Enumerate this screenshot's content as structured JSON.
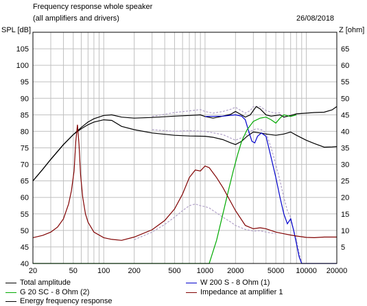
{
  "header": {
    "title": "Frequency response whole speaker",
    "subtitle": "(all amplifiers and drivers)",
    "date": "26/08/2018",
    "left_unit": "SPL [dB]",
    "right_unit": "Z [ohm]"
  },
  "colors": {
    "total": "#000000",
    "woofer": "#0000cc",
    "tweeter": "#00aa00",
    "impedance": "#800000",
    "dotted": "#b0a0c8",
    "grid": "#c0c0c0"
  },
  "chart_data": {
    "type": "line",
    "x_scale": "log",
    "xlim": [
      20,
      20000
    ],
    "ylim_left": [
      40,
      110
    ],
    "ylim_right": [
      0,
      70
    ],
    "grid": true,
    "x_tick_labels": [
      "20",
      "50",
      "100",
      "200",
      "500",
      "1000",
      "2000",
      "5000",
      "10000",
      "20000"
    ],
    "x_tick_values": [
      20,
      50,
      100,
      200,
      500,
      1000,
      2000,
      5000,
      10000,
      20000
    ],
    "y_left_ticks": [
      40,
      45,
      50,
      55,
      60,
      65,
      70,
      75,
      80,
      85,
      90,
      95,
      100,
      105
    ],
    "y_right_ticks": [
      5,
      10,
      15,
      20,
      25,
      30,
      35,
      40,
      45,
      50,
      55,
      60,
      65
    ],
    "series": [
      {
        "name": "Total amplitude",
        "color": "#000000",
        "points": [
          [
            20,
            65
          ],
          [
            25,
            68.5
          ],
          [
            30,
            71.5
          ],
          [
            40,
            76
          ],
          [
            50,
            79
          ],
          [
            60,
            81.2
          ],
          [
            70,
            82.8
          ],
          [
            80,
            83.8
          ],
          [
            100,
            84.8
          ],
          [
            120,
            85
          ],
          [
            150,
            84.3
          ],
          [
            200,
            84
          ],
          [
            300,
            84.2
          ],
          [
            500,
            84.6
          ],
          [
            700,
            84.8
          ],
          [
            900,
            85
          ],
          [
            1000,
            84.5
          ],
          [
            1200,
            84
          ],
          [
            1500,
            84.6
          ],
          [
            1800,
            85.2
          ],
          [
            2000,
            86
          ],
          [
            2200,
            85.3
          ],
          [
            2500,
            84.3
          ],
          [
            2800,
            85
          ],
          [
            3000,
            86.3
          ],
          [
            3200,
            87.5
          ],
          [
            3500,
            86.8
          ],
          [
            4000,
            85
          ],
          [
            4500,
            84.6
          ],
          [
            5000,
            84.8
          ],
          [
            5500,
            85
          ],
          [
            6000,
            84.3
          ],
          [
            7000,
            84.8
          ],
          [
            8000,
            85.3
          ],
          [
            10000,
            85.5
          ],
          [
            12000,
            85.7
          ],
          [
            15000,
            85.8
          ],
          [
            18000,
            86.5
          ],
          [
            20000,
            87.5
          ]
        ]
      },
      {
        "name": "Energy frequency response",
        "color": "#000000",
        "points": [
          [
            20,
            65
          ],
          [
            25,
            68.5
          ],
          [
            30,
            71.5
          ],
          [
            40,
            76
          ],
          [
            50,
            79
          ],
          [
            60,
            80.8
          ],
          [
            70,
            82
          ],
          [
            80,
            82.8
          ],
          [
            100,
            83.5
          ],
          [
            120,
            83.3
          ],
          [
            150,
            81.5
          ],
          [
            200,
            80.5
          ],
          [
            300,
            79.5
          ],
          [
            500,
            78.8
          ],
          [
            700,
            78.6
          ],
          [
            1000,
            78.5
          ],
          [
            1200,
            78.2
          ],
          [
            1500,
            77.5
          ],
          [
            1800,
            76.5
          ],
          [
            2000,
            76
          ],
          [
            2300,
            77
          ],
          [
            2600,
            78.5
          ],
          [
            3000,
            79.8
          ],
          [
            3500,
            79.5
          ],
          [
            4000,
            79.2
          ],
          [
            5000,
            78.8
          ],
          [
            6000,
            79.2
          ],
          [
            7000,
            79.8
          ],
          [
            8000,
            78.8
          ],
          [
            10000,
            77.3
          ],
          [
            12000,
            76.3
          ],
          [
            15000,
            75.2
          ],
          [
            18000,
            75.3
          ],
          [
            20000,
            75.4
          ]
        ]
      },
      {
        "name": "W 200 S - 8 Ohm (1)",
        "color": "#0000cc",
        "points": [
          [
            1000,
            84.5
          ],
          [
            1500,
            84.6
          ],
          [
            2000,
            85
          ],
          [
            2300,
            84.6
          ],
          [
            2500,
            83.5
          ],
          [
            2700,
            80
          ],
          [
            2900,
            77
          ],
          [
            3100,
            76.5
          ],
          [
            3300,
            78.5
          ],
          [
            3600,
            79.5
          ],
          [
            4000,
            78.5
          ],
          [
            4500,
            72
          ],
          [
            5000,
            66
          ],
          [
            5500,
            60
          ],
          [
            6000,
            55
          ],
          [
            6500,
            52
          ],
          [
            7000,
            53.5
          ],
          [
            7500,
            50
          ],
          [
            8000,
            46
          ],
          [
            8500,
            42
          ],
          [
            9000,
            40
          ],
          [
            20000,
            40
          ]
        ]
      },
      {
        "name": "G 20 SC - 8 Ohm (2)",
        "color": "#00aa00",
        "points": [
          [
            20,
            40
          ],
          [
            1100,
            40
          ],
          [
            1300,
            47
          ],
          [
            1500,
            55
          ],
          [
            1700,
            62
          ],
          [
            1900,
            68
          ],
          [
            2100,
            73
          ],
          [
            2300,
            77
          ],
          [
            2600,
            80.5
          ],
          [
            3000,
            83
          ],
          [
            3500,
            84
          ],
          [
            4000,
            84.3
          ],
          [
            4500,
            83.5
          ],
          [
            5000,
            82.5
          ],
          [
            5500,
            84
          ],
          [
            6000,
            85
          ],
          [
            7000,
            84.5
          ],
          [
            8000,
            85
          ]
        ]
      },
      {
        "name": "Impedance at amplifier 1",
        "color": "#800000",
        "points": [
          [
            20,
            7.8
          ],
          [
            25,
            8.5
          ],
          [
            30,
            9.5
          ],
          [
            35,
            11
          ],
          [
            40,
            13.5
          ],
          [
            45,
            18
          ],
          [
            48,
            22
          ],
          [
            51,
            28
          ],
          [
            53,
            37
          ],
          [
            55,
            42
          ],
          [
            57,
            36
          ],
          [
            59,
            27
          ],
          [
            62,
            20
          ],
          [
            66,
            15
          ],
          [
            70,
            12.5
          ],
          [
            80,
            9.5
          ],
          [
            100,
            7.8
          ],
          [
            120,
            7.3
          ],
          [
            150,
            7
          ],
          [
            200,
            8
          ],
          [
            300,
            10.2
          ],
          [
            400,
            13
          ],
          [
            500,
            16.5
          ],
          [
            600,
            21
          ],
          [
            700,
            26
          ],
          [
            800,
            28.3
          ],
          [
            900,
            28
          ],
          [
            1000,
            29.5
          ],
          [
            1100,
            29
          ],
          [
            1300,
            26
          ],
          [
            1500,
            23
          ],
          [
            2000,
            16
          ],
          [
            2500,
            11.5
          ],
          [
            3000,
            10.5
          ],
          [
            3500,
            10.8
          ],
          [
            4000,
            10.5
          ],
          [
            5000,
            9.5
          ],
          [
            6000,
            9
          ],
          [
            7000,
            8.6
          ],
          [
            8000,
            8.3
          ],
          [
            10000,
            7.9
          ],
          [
            12000,
            7.8
          ],
          [
            15000,
            8
          ],
          [
            20000,
            8
          ]
        ]
      }
    ],
    "dotted_series": [
      {
        "color": "#b0a0c8",
        "points": [
          [
            300,
            84.5
          ],
          [
            500,
            85.7
          ],
          [
            700,
            86.2
          ],
          [
            900,
            86.6
          ],
          [
            1000,
            86
          ],
          [
            1200,
            85.5
          ],
          [
            1500,
            86
          ],
          [
            1800,
            86.7
          ],
          [
            2000,
            87.3
          ],
          [
            2200,
            86.5
          ],
          [
            2500,
            85.5
          ],
          [
            2800,
            86.3
          ],
          [
            3000,
            87.5
          ],
          [
            3500,
            87.5
          ],
          [
            4000,
            86.3
          ],
          [
            4500,
            85.8
          ],
          [
            5000,
            85.5
          ],
          [
            5500,
            85.6
          ]
        ]
      },
      {
        "color": "#b0a0c8",
        "points": [
          [
            300,
            80.5
          ],
          [
            500,
            80
          ],
          [
            700,
            80.2
          ],
          [
            1000,
            80
          ],
          [
            1500,
            79
          ],
          [
            2000,
            77.3
          ],
          [
            2400,
            78.3
          ],
          [
            2800,
            80
          ],
          [
            3200,
            80.8
          ],
          [
            3600,
            80.5
          ],
          [
            4000,
            79.5
          ],
          [
            4500,
            75
          ],
          [
            5000,
            70
          ],
          [
            5500,
            65
          ],
          [
            6000,
            60
          ],
          [
            6500,
            56
          ],
          [
            7000,
            54
          ],
          [
            7500,
            50
          ],
          [
            8000,
            47
          ],
          [
            8500,
            43
          ],
          [
            9000,
            40.5
          ]
        ]
      },
      {
        "color": "#b0a0c8",
        "points": [
          [
            200,
            7.2
          ],
          [
            300,
            9.5
          ],
          [
            400,
            11.8
          ],
          [
            500,
            14
          ],
          [
            600,
            16
          ],
          [
            700,
            17.5
          ],
          [
            800,
            18
          ],
          [
            900,
            17.5
          ],
          [
            1000,
            17.2
          ],
          [
            1100,
            16.8
          ],
          [
            1300,
            15.3
          ],
          [
            1500,
            14
          ],
          [
            1800,
            12.5
          ],
          [
            2000,
            11.5
          ],
          [
            2500,
            10.3
          ],
          [
            3000,
            9.8
          ],
          [
            3500,
            9.9
          ],
          [
            4000,
            9.5
          ],
          [
            5000,
            9
          ]
        ]
      }
    ]
  },
  "legend": {
    "total_label": "Total amplitude",
    "tweeter_label": "G 20 SC - 8 Ohm (2)",
    "energy_label": "Energy frequency response",
    "woofer_label": "W 200 S - 8 Ohm (1)",
    "impedance_label": "Impedance at amplifier 1"
  }
}
